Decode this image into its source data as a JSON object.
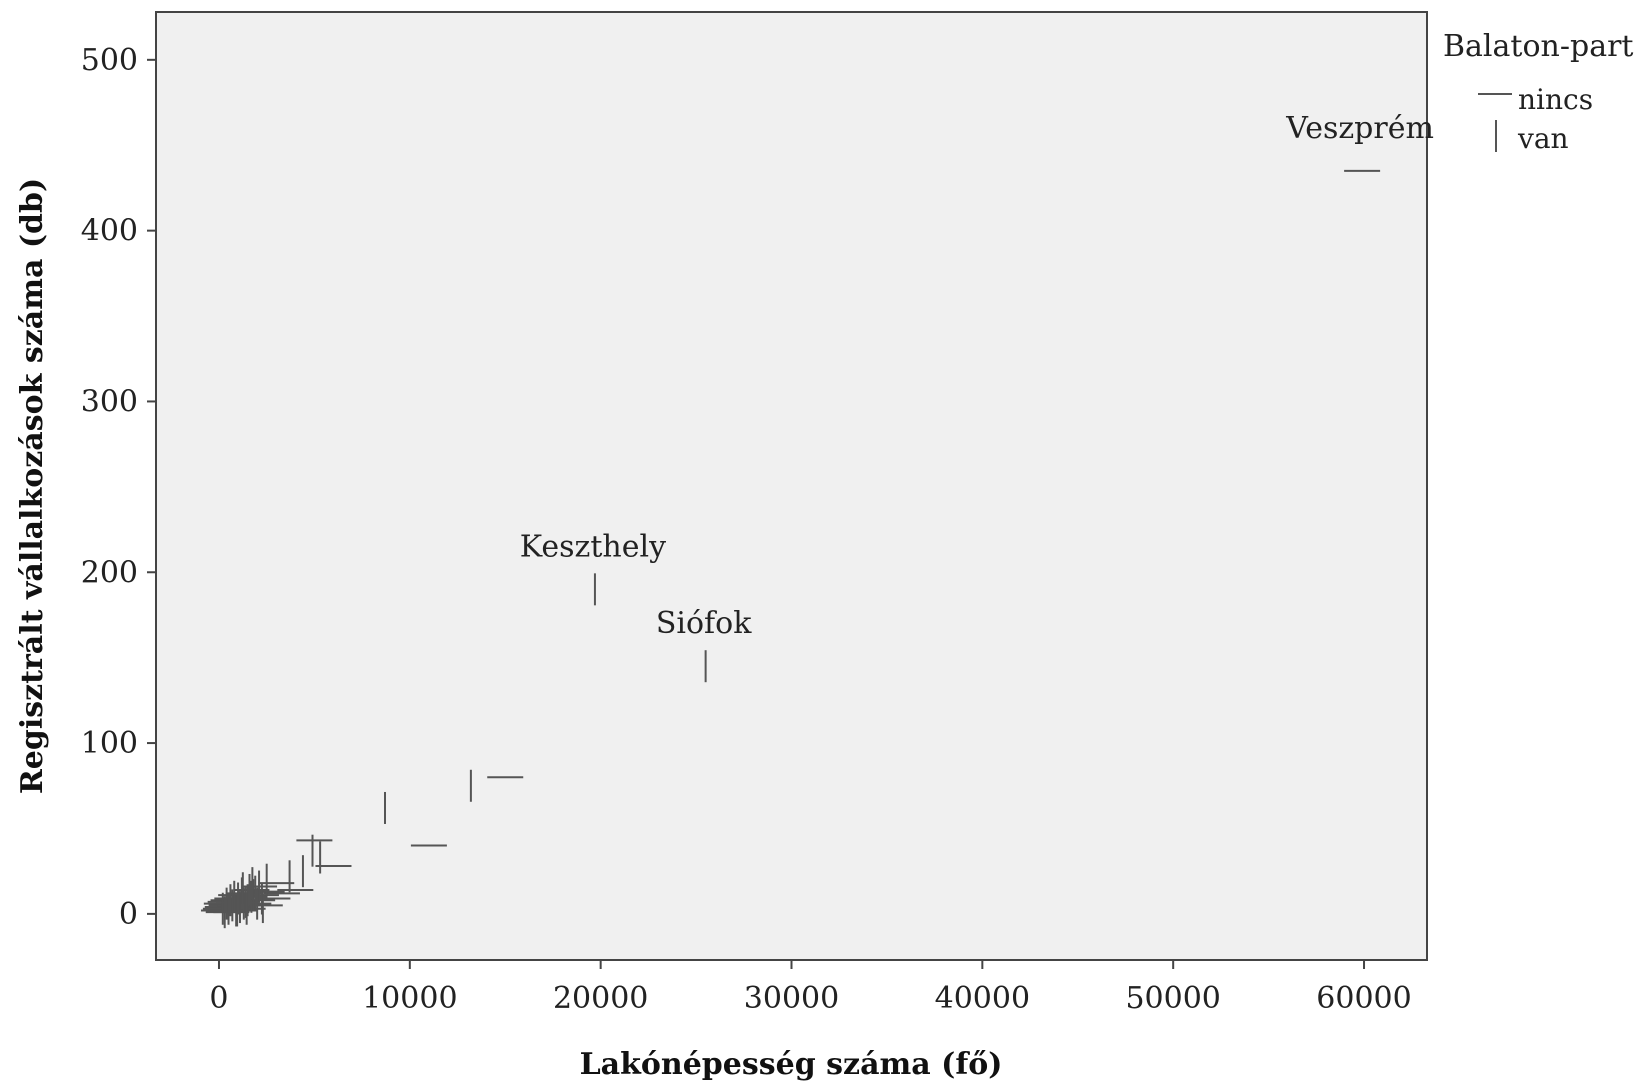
{
  "chart_data": {
    "type": "scatter",
    "title": "",
    "xlabel": "Lakónépesség száma (fő)",
    "ylabel": "Regisztrált vállalkozások száma (db)",
    "xlim": [
      -3300,
      63300
    ],
    "ylim": [
      -27,
      528
    ],
    "xticks": [
      0,
      10000,
      20000,
      30000,
      40000,
      50000,
      60000
    ],
    "yticks": [
      0,
      100,
      200,
      300,
      400,
      500
    ],
    "grid": false,
    "plot_background": "#f0f0f0",
    "marker_color": "#555555",
    "legend": {
      "title": "Balaton-part",
      "placement": "right-outside-top",
      "entries": [
        {
          "label": "nincs",
          "marker": "horizontal-dash"
        },
        {
          "label": "van",
          "marker": "vertical-dash"
        }
      ]
    },
    "series": [
      {
        "name": "nincs",
        "marker": "horizontal-dash",
        "points": [
          [
            59900,
            435
          ],
          [
            15000,
            80
          ],
          [
            11000,
            40
          ],
          [
            6000,
            28
          ],
          [
            5000,
            43
          ],
          [
            4000,
            14
          ],
          [
            3000,
            18
          ],
          [
            2500,
            13
          ],
          [
            2200,
            11
          ],
          [
            2000,
            8
          ],
          [
            1800,
            6
          ],
          [
            1600,
            10
          ],
          [
            1400,
            5
          ],
          [
            1200,
            7
          ],
          [
            1000,
            4
          ],
          [
            800,
            6
          ],
          [
            600,
            3
          ],
          [
            400,
            5
          ],
          [
            300,
            2
          ],
          [
            200,
            4
          ],
          [
            100,
            3
          ],
          [
            0,
            2
          ],
          [
            500,
            8
          ],
          [
            700,
            9
          ],
          [
            900,
            11
          ],
          [
            1100,
            2
          ],
          [
            1300,
            12
          ],
          [
            1500,
            3
          ],
          [
            1700,
            14
          ],
          [
            2100,
            16
          ],
          [
            2400,
            5
          ],
          [
            2800,
            9
          ],
          [
            3300,
            12
          ],
          [
            150,
            6
          ],
          [
            250,
            1
          ],
          [
            350,
            7
          ],
          [
            450,
            3
          ],
          [
            650,
            1
          ],
          [
            850,
            5
          ],
          [
            1050,
            8
          ]
        ]
      },
      {
        "name": "van",
        "marker": "vertical-dash",
        "points": [
          [
            19700,
            190
          ],
          [
            25500,
            145
          ],
          [
            8700,
            62
          ],
          [
            13200,
            75
          ],
          [
            5300,
            33
          ],
          [
            4900,
            37
          ],
          [
            4400,
            25
          ],
          [
            3700,
            22
          ],
          [
            2500,
            20
          ],
          [
            2100,
            16
          ],
          [
            1900,
            13
          ],
          [
            1700,
            10
          ],
          [
            1500,
            8
          ],
          [
            1300,
            6
          ],
          [
            1100,
            4
          ],
          [
            900,
            2
          ],
          [
            700,
            5
          ],
          [
            500,
            3
          ],
          [
            300,
            1
          ],
          [
            1000,
            9
          ],
          [
            1200,
            12
          ],
          [
            1400,
            7
          ],
          [
            1600,
            14
          ],
          [
            1800,
            11
          ],
          [
            2000,
            6
          ],
          [
            2300,
            4
          ],
          [
            600,
            8
          ],
          [
            800,
            10
          ],
          [
            400,
            6
          ],
          [
            200,
            3
          ],
          [
            1250,
            15
          ],
          [
            1750,
            18
          ],
          [
            2250,
            9
          ],
          [
            950,
            2
          ],
          [
            1450,
            3
          ]
        ]
      }
    ],
    "annotations": [
      {
        "text": "Veszprém",
        "x": 59900,
        "y": 435
      },
      {
        "text": "Keszthely",
        "x": 19700,
        "y": 190
      },
      {
        "text": "Siófok",
        "x": 25500,
        "y": 145
      }
    ]
  }
}
